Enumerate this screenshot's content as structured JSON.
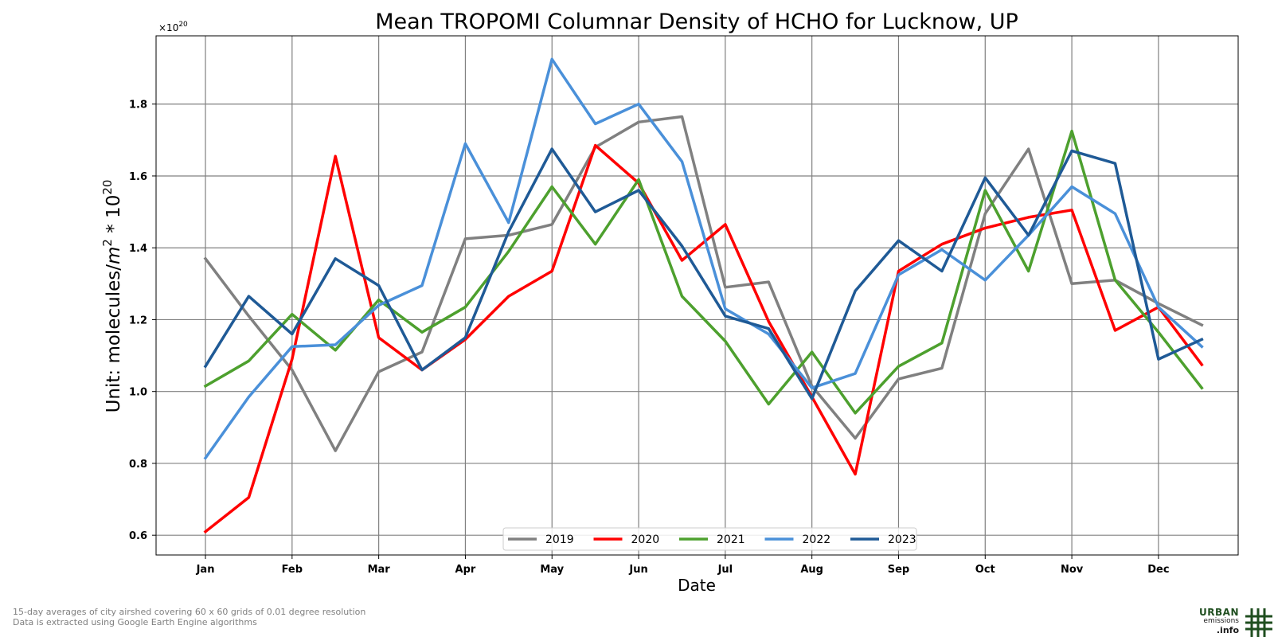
{
  "chart_data": {
    "type": "line",
    "title": "Mean TROPOMI Columnar Density of HCHO for Lucknow, UP",
    "xlabel": "Date",
    "ylabel_prefix": "Unit: molecules/",
    "ylabel_unit_base": "m",
    "ylabel_unit_exp": "2",
    "ylabel_mid": " * 10",
    "ylabel_exp": "20",
    "offset_base": "×10",
    "offset_exp": "20",
    "ylim": [
      0.545,
      1.99
    ],
    "yticks": [
      0.6,
      0.8,
      1.0,
      1.2,
      1.4,
      1.6,
      1.8
    ],
    "ytick_labels": [
      "0.6",
      "0.8",
      "1.0",
      "1.2",
      "1.4",
      "1.6",
      "1.8"
    ],
    "xlim": [
      -0.57,
      11.92
    ],
    "month_labels": [
      "Jan",
      "Feb",
      "Mar",
      "Apr",
      "May",
      "Jun",
      "Jul",
      "Aug",
      "Sep",
      "Oct",
      "Nov",
      "Dec"
    ],
    "x": [
      0,
      0.5,
      1,
      1.5,
      2,
      2.5,
      3,
      3.5,
      4,
      4.5,
      5,
      5.5,
      6,
      6.5,
      7,
      7.5,
      8,
      8.5,
      9,
      9.5,
      10,
      10.5,
      11,
      11.5
    ],
    "grid": true,
    "legend_position": "bottom-center",
    "series": [
      {
        "name": "2019",
        "color": "#808080",
        "values": [
          1.37,
          1.21,
          1.06,
          0.835,
          1.055,
          1.11,
          1.425,
          1.435,
          1.465,
          1.68,
          1.75,
          1.765,
          1.29,
          1.305,
          1.015,
          0.87,
          1.035,
          1.065,
          1.495,
          1.675,
          1.3,
          1.31,
          1.245,
          1.185
        ]
      },
      {
        "name": "2020",
        "color": "#ff0000",
        "values": [
          0.61,
          0.705,
          1.09,
          1.655,
          1.15,
          1.06,
          1.145,
          1.265,
          1.335,
          1.685,
          1.58,
          1.365,
          1.465,
          1.195,
          0.985,
          0.77,
          1.335,
          1.41,
          1.455,
          1.485,
          1.505,
          1.17,
          1.235,
          1.075
        ]
      },
      {
        "name": "2021",
        "color": "#4da02e",
        "values": [
          1.015,
          1.085,
          1.215,
          1.115,
          1.255,
          1.165,
          1.235,
          1.39,
          1.57,
          1.41,
          1.59,
          1.265,
          1.14,
          0.965,
          1.11,
          0.94,
          1.07,
          1.135,
          1.56,
          1.335,
          1.725,
          1.31,
          1.165,
          1.01
        ]
      },
      {
        "name": "2022",
        "color": "#4a90d9",
        "values": [
          0.815,
          0.985,
          1.125,
          1.13,
          1.24,
          1.295,
          1.69,
          1.47,
          1.925,
          1.745,
          1.8,
          1.64,
          1.23,
          1.16,
          1.01,
          1.05,
          1.325,
          1.395,
          1.31,
          1.435,
          1.57,
          1.495,
          1.235,
          1.125
        ]
      },
      {
        "name": "2023",
        "color": "#1f5a96",
        "values": [
          1.07,
          1.265,
          1.16,
          1.37,
          1.295,
          1.06,
          1.15,
          1.445,
          1.675,
          1.5,
          1.56,
          1.405,
          1.21,
          1.175,
          0.98,
          1.28,
          1.42,
          1.335,
          1.595,
          1.435,
          1.67,
          1.635,
          1.09,
          1.145
        ]
      }
    ]
  },
  "footer": {
    "note1": "15-day averages of city airshed covering 60 x 60 grids of 0.01 degree resolution",
    "note2": "Data is extracted using Google Earth Engine algorithms"
  },
  "logo": {
    "line1": "URBAN",
    "line2": "emissions",
    "line3": ".info",
    "color": "#1f4e1f"
  }
}
